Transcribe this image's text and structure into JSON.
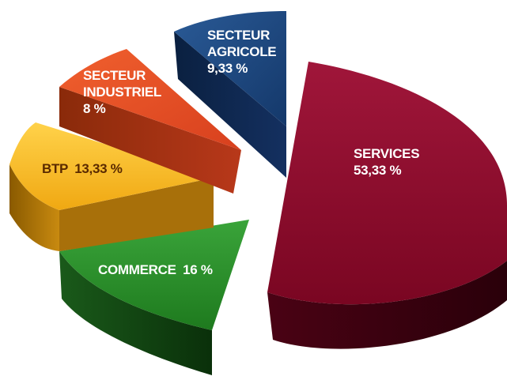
{
  "chart_data": {
    "type": "pie",
    "style": "exploded-3d",
    "slices": [
      {
        "label": "SERVICES",
        "value": 53.33,
        "value_label": "53,33 %",
        "color": "#8b0a2a",
        "text_color": "#ffffff"
      },
      {
        "label": "COMMERCE",
        "value": 16,
        "value_label": "16 %",
        "color": "#2a8a2a",
        "text_color": "#ffffff"
      },
      {
        "label": "BTP",
        "value": 13.33,
        "value_label": "13,33 %",
        "color": "#f5b81c",
        "text_color": "#5a2a00"
      },
      {
        "label": "SECTEUR INDUSTRIEL",
        "value": 8,
        "value_label": "8 %",
        "color": "#e8502a",
        "text_color": "#ffffff"
      },
      {
        "label": "SECTEUR AGRICOLE",
        "value": 9.33,
        "value_label": "9,33 %",
        "color": "#1e4a82",
        "text_color": "#ffffff"
      }
    ]
  }
}
